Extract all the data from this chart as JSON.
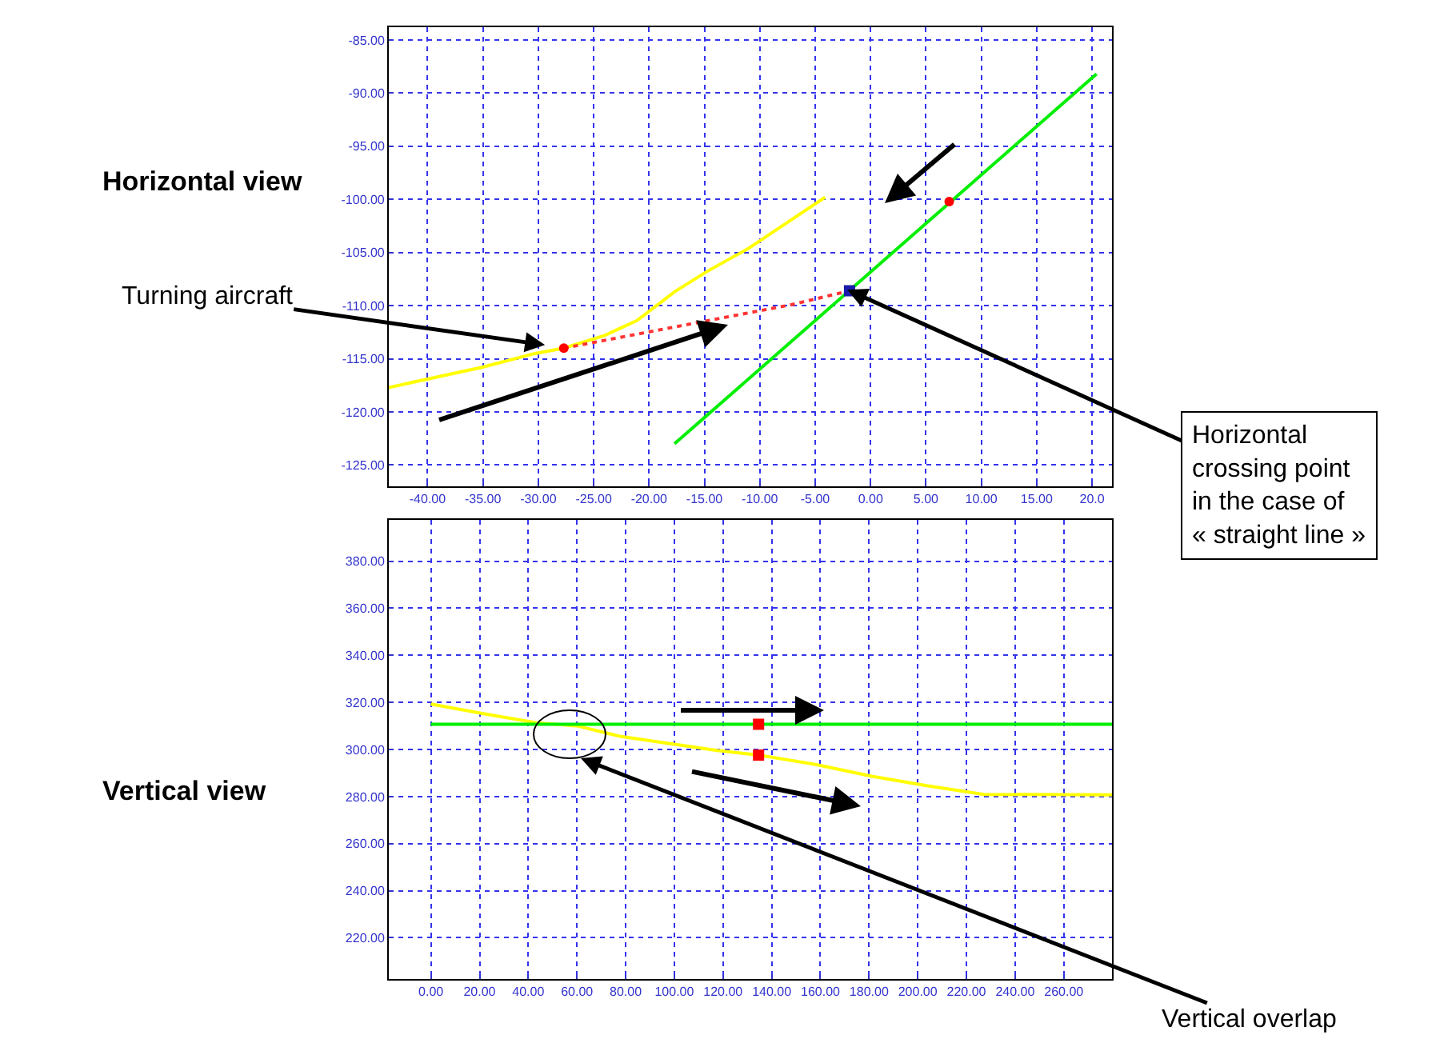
{
  "chart_data": [
    {
      "type": "line",
      "title": "Horizontal view",
      "xlim": [
        -43.5,
        21.8
      ],
      "ylim": [
        -127,
        -83.8
      ],
      "xticks": [
        {
          "value": -40,
          "label": "-40.00"
        },
        {
          "value": -35,
          "label": "-35.00"
        },
        {
          "value": -30,
          "label": "-30.00"
        },
        {
          "value": -25,
          "label": "-25.00"
        },
        {
          "value": -20,
          "label": "-20.00"
        },
        {
          "value": -15,
          "label": "-15.00"
        },
        {
          "value": -10,
          "label": "-10.00"
        },
        {
          "value": -5,
          "label": "-5.00"
        },
        {
          "value": 0,
          "label": "0.00"
        },
        {
          "value": 5,
          "label": "5.00"
        },
        {
          "value": 10,
          "label": "10.00"
        },
        {
          "value": 15,
          "label": "15.00"
        },
        {
          "value": 20,
          "label": "20.0"
        }
      ],
      "yticks": [
        {
          "value": -85,
          "label": "-85.00"
        },
        {
          "value": -90,
          "label": "-90.00"
        },
        {
          "value": -95,
          "label": "-95.00"
        },
        {
          "value": -100,
          "label": "-100.00"
        },
        {
          "value": -105,
          "label": "-105.00"
        },
        {
          "value": -110,
          "label": "-110.00"
        },
        {
          "value": -115,
          "label": "-115.00"
        },
        {
          "value": -120,
          "label": "-120.00"
        },
        {
          "value": -125,
          "label": "-125.00"
        }
      ],
      "grid": true,
      "series": [
        {
          "color": "#ffff00",
          "x": [
            -43.5,
            -35.1,
            -30.3,
            -27.7,
            -24.0,
            -21.1,
            -17.7,
            -14.8,
            -11.0,
            -4.1
          ],
          "values": [
            -117.7,
            -115.8,
            -114.5,
            -114.0,
            -112.8,
            -111.4,
            -108.7,
            -106.8,
            -104.6,
            -99.8
          ]
        },
        {
          "color": "#00ee00",
          "x": [
            -17.7,
            20.4
          ],
          "values": [
            -123.0,
            -88.2
          ]
        },
        {
          "color": "#ff3333",
          "line_style": "dotted",
          "x": [
            -27.7,
            -7.1,
            -1.9
          ],
          "values": [
            -114.0,
            -109.9,
            -108.6
          ]
        },
        {
          "type": "scatter",
          "color": "#ff0000",
          "marker": "circle",
          "x": [
            -27.7,
            7.1
          ],
          "values": [
            -114.0,
            -100.2
          ]
        },
        {
          "type": "scatter",
          "color": "#1a1aaa",
          "marker": "square",
          "x": [
            -1.9
          ],
          "values": [
            -108.6
          ]
        }
      ],
      "annotations": [
        {
          "text": "Turning aircraft",
          "x": -29.4,
          "y": -113.7
        },
        {
          "text": "Horizontal\ncrossing point\nin the case of\n« straight line »",
          "x": -2.1,
          "y": -108.5
        }
      ]
    },
    {
      "type": "line",
      "title": "Vertical view",
      "xlim": [
        -17.3,
        279.8
      ],
      "ylim": [
        202.5,
        397.5
      ],
      "xticks": [
        {
          "value": 0,
          "label": "0.00"
        },
        {
          "value": 20,
          "label": "20.00"
        },
        {
          "value": 40,
          "label": "40.00"
        },
        {
          "value": 60,
          "label": "60.00"
        },
        {
          "value": 80,
          "label": "80.00"
        },
        {
          "value": 100,
          "label": "100.00"
        },
        {
          "value": 120,
          "label": "120.00"
        },
        {
          "value": 140,
          "label": "140.00"
        },
        {
          "value": 160,
          "label": "160.00"
        },
        {
          "value": 180,
          "label": "180.00"
        },
        {
          "value": 200,
          "label": "200.00"
        },
        {
          "value": 220,
          "label": "220.00"
        },
        {
          "value": 240,
          "label": "240.00"
        },
        {
          "value": 260,
          "label": "260.00"
        }
      ],
      "yticks": [
        {
          "value": 220,
          "label": "220.00"
        },
        {
          "value": 240,
          "label": "240.00"
        },
        {
          "value": 260,
          "label": "260.00"
        },
        {
          "value": 280,
          "label": "280.00"
        },
        {
          "value": 300,
          "label": "300.00"
        },
        {
          "value": 320,
          "label": "320.00"
        },
        {
          "value": 340,
          "label": "340.00"
        },
        {
          "value": 360,
          "label": "360.00"
        },
        {
          "value": 380,
          "label": "380.00"
        }
      ],
      "grid": true,
      "series": [
        {
          "color": "#ffff00",
          "x": [
            0,
            21.1,
            43.0,
            60.5,
            78.1,
            100,
            117.5,
            134.6,
            159.2,
            181.1,
            203.1,
            227.2,
            279.8
          ],
          "values": [
            319.3,
            315.3,
            311.4,
            309.9,
            305.5,
            302.2,
            299.6,
            297.6,
            293.4,
            288.6,
            284.7,
            280.9,
            280.7
          ]
        },
        {
          "color": "#00ee00",
          "x": [
            0,
            279.8
          ],
          "values": [
            310.7,
            310.7
          ]
        },
        {
          "type": "scatter",
          "color": "#ff0000",
          "marker": "square",
          "x": [
            134.6,
            134.6
          ],
          "values": [
            310.7,
            297.6
          ]
        }
      ],
      "annotations": [
        "Vertical overlap"
      ]
    }
  ]
}
